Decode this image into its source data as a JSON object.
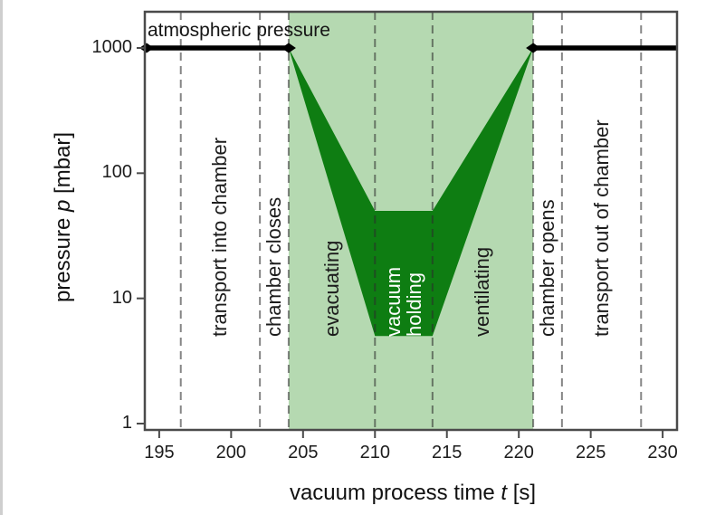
{
  "chart_data": {
    "type": "area",
    "title": "",
    "xlabel": "vacuum process time t [s]",
    "xlabel_parts": {
      "pre": "vacuum process time ",
      "var": "t",
      "post": " [s]"
    },
    "ylabel": "pressure p [mbar]",
    "ylabel_parts": {
      "pre": "pressure ",
      "var": "p",
      "post": " [mbar]"
    },
    "x_ticks": [
      195,
      200,
      205,
      210,
      215,
      220,
      225,
      230
    ],
    "y_ticks": [
      1000,
      100,
      10,
      1
    ],
    "xlim": [
      194,
      231
    ],
    "ylim": [
      0.9,
      1900
    ],
    "y_scale": "log",
    "grid": "off",
    "annotation": "atmospheric pressure",
    "atmospheric_line": {
      "pressure_mbar": 1000,
      "segments_t": [
        [
          194,
          204
        ],
        [
          221,
          231
        ]
      ]
    },
    "shaded_zone_t": [
      204,
      221
    ],
    "divider_lines_t": [
      196.5,
      202,
      204,
      210,
      214,
      221,
      223,
      228.5
    ],
    "band": {
      "description": "pressure envelope during vacuum process",
      "upper_t_p": [
        [
          204,
          1000
        ],
        [
          210,
          50
        ],
        [
          214,
          50
        ],
        [
          221,
          1000
        ]
      ],
      "lower_t_p": [
        [
          204,
          1000
        ],
        [
          210,
          5
        ],
        [
          214,
          5
        ],
        [
          221,
          1000
        ]
      ]
    },
    "phases": [
      {
        "label": "transport into chamber",
        "t_range": [
          196.5,
          202
        ]
      },
      {
        "label": "chamber closes",
        "t_range": [
          202,
          204
        ]
      },
      {
        "label": "evacuating",
        "t_range": [
          204,
          210
        ]
      },
      {
        "label": "vacuum holding",
        "t_range": [
          210,
          214
        ]
      },
      {
        "label": "ventilating",
        "t_range": [
          214,
          221
        ]
      },
      {
        "label": "chamber opens",
        "t_range": [
          221,
          223
        ]
      },
      {
        "label": "transport out of chamber",
        "t_range": [
          223,
          228.5
        ]
      }
    ],
    "colors": {
      "zone_fill": "#b5d9b1",
      "band_fill": "#0e7d12",
      "atmospheric_line": "#000000",
      "divider": "#4a4a4a",
      "border": "#4a4a4a",
      "holding_text": "#ffffff"
    }
  }
}
